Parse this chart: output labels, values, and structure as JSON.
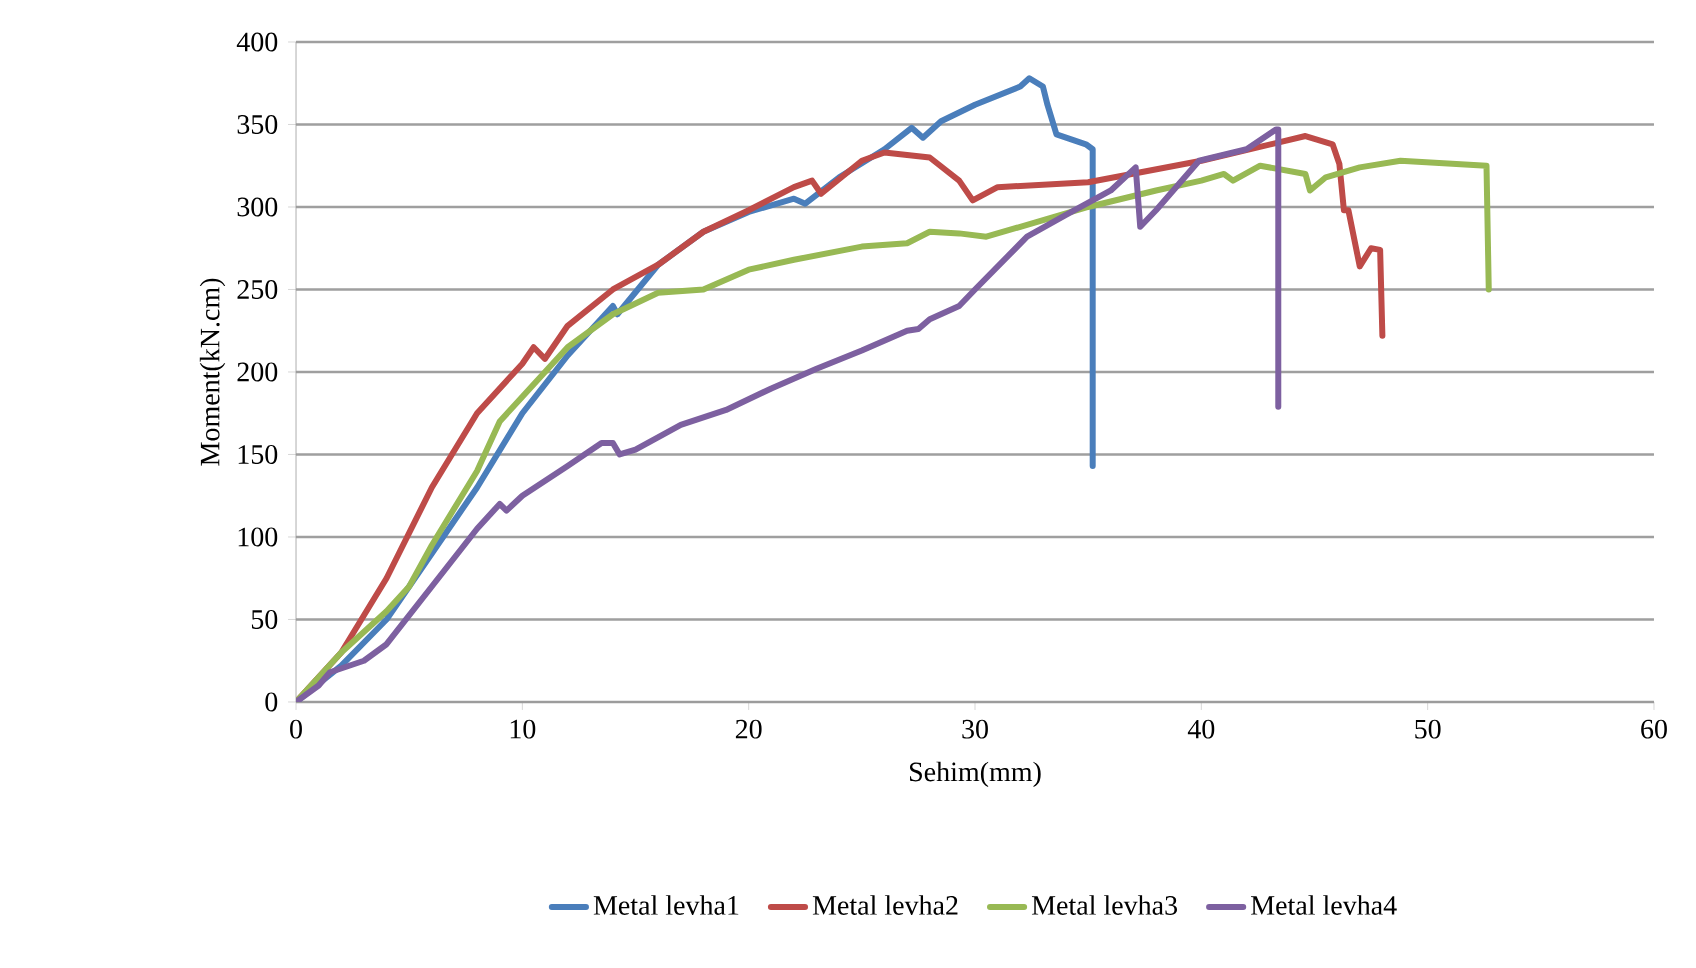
{
  "chart_data": {
    "type": "line",
    "xlabel": "Sehim(mm)",
    "ylabel": "Moment(kN.cm)",
    "xlim": [
      0,
      60
    ],
    "xticks": [
      0,
      10,
      20,
      30,
      40,
      50,
      60
    ],
    "ylim": [
      0,
      400
    ],
    "yticks": [
      0,
      50,
      100,
      150,
      200,
      250,
      300,
      350,
      400
    ],
    "grid": "y",
    "legend": "bottom",
    "marker": "none",
    "line_style": "solid",
    "series": [
      {
        "name": "Metal levha1",
        "color": "#4a7ebb",
        "x": [
          0,
          2,
          4,
          6,
          8,
          10,
          12,
          14,
          14.2,
          16,
          18,
          20,
          22,
          22.5,
          24,
          26,
          27.2,
          27.7,
          28.5,
          30,
          32,
          32.4,
          33,
          33.2,
          33.6,
          34.9,
          35.2,
          35.2
        ],
        "values": [
          0,
          22,
          50,
          90,
          130,
          175,
          210,
          240,
          235,
          265,
          285,
          297,
          305,
          302,
          318,
          335,
          348,
          342,
          352,
          362,
          373,
          378,
          373,
          362,
          344,
          338,
          335,
          143
        ]
      },
      {
        "name": "Metal levha2",
        "color": "#be4b48",
        "x": [
          0,
          2,
          4,
          6,
          8,
          10,
          10.5,
          11,
          12,
          14,
          16,
          18,
          20,
          22,
          22.8,
          23.2,
          25,
          26,
          28,
          29.3,
          29.9,
          31,
          35,
          40,
          44.6,
          45.8,
          46.1,
          46.3,
          46.5,
          47,
          47.5,
          47.9,
          48
        ],
        "values": [
          0,
          30,
          75,
          130,
          175,
          205,
          215,
          208,
          228,
          250,
          265,
          285,
          298,
          312,
          316,
          308,
          328,
          333,
          330,
          316,
          304,
          312,
          315,
          328,
          343,
          338,
          326,
          298,
          298,
          264,
          275,
          274,
          222
        ]
      },
      {
        "name": "Metal levha3",
        "color": "#98b954",
        "x": [
          0,
          2,
          4,
          5,
          6,
          8,
          9,
          10,
          12,
          14,
          16,
          18,
          20,
          22,
          25,
          27,
          28,
          29.3,
          30.5,
          32,
          35,
          38,
          40,
          41,
          41.4,
          42.6,
          44.6,
          44.8,
          45.5,
          47,
          48.8,
          52.6,
          52.7
        ],
        "values": [
          0,
          30,
          55,
          70,
          95,
          140,
          170,
          185,
          215,
          235,
          248,
          250,
          262,
          268,
          276,
          278,
          285,
          284,
          282,
          288,
          300,
          310,
          316,
          320,
          316,
          325,
          320,
          310,
          318,
          324,
          328,
          325,
          250
        ]
      },
      {
        "name": "Metal levha4",
        "color": "#7d60a0",
        "x": [
          0,
          1,
          1.5,
          3,
          4,
          6,
          8,
          9,
          9.3,
          10,
          12,
          13.5,
          14,
          14.3,
          15,
          17,
          19,
          21,
          23,
          25,
          27,
          27.5,
          28,
          29.3,
          30,
          32.3,
          34,
          36,
          37.1,
          37.3,
          38,
          39.9,
          42,
          43.3,
          43.4,
          43.4
        ],
        "values": [
          0,
          10,
          18,
          25,
          35,
          70,
          105,
          120,
          116,
          125,
          143,
          157,
          157,
          150,
          153,
          168,
          177,
          190,
          202,
          213,
          225,
          226,
          232,
          240,
          250,
          282,
          295,
          310,
          324,
          288,
          298,
          328,
          335,
          347,
          347,
          179
        ]
      }
    ]
  }
}
